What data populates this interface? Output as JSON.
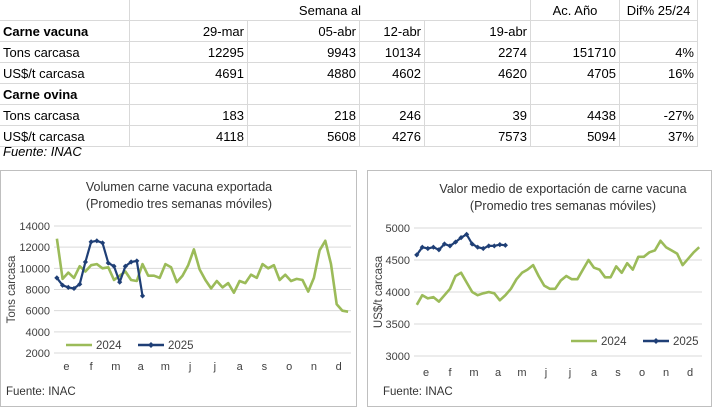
{
  "table": {
    "header": {
      "week_label": "Semana al",
      "ac_label": "Ac. Año",
      "dif_label": "Dif% 25/24"
    },
    "dates": [
      "29-mar",
      "05-abr",
      "12-abr",
      "19-abr"
    ],
    "sections": [
      {
        "title": "Carne vacuna",
        "rows": [
          {
            "label": "Tons carcasa",
            "values": [
              "12295",
              "9943",
              "10134",
              "2274"
            ],
            "ac": "151710",
            "dif": "4%"
          },
          {
            "label": "US$/t carcasa",
            "values": [
              "4691",
              "4880",
              "4602",
              "4620"
            ],
            "ac": "4705",
            "dif": "16%"
          }
        ]
      },
      {
        "title": "Carne ovina",
        "rows": [
          {
            "label": "Tons carcasa",
            "values": [
              "183",
              "218",
              "246",
              "39"
            ],
            "ac": "4438",
            "dif": "-27%"
          },
          {
            "label": "US$/t carcasa",
            "values": [
              "4118",
              "5608",
              "4276",
              "7573"
            ],
            "ac": "5094",
            "dif": "37%"
          }
        ]
      }
    ],
    "source": "Fuente: INAC"
  },
  "chart_data": [
    {
      "type": "line",
      "title": "Volumen carne vacuna exportada",
      "subtitle": "(Promedio tres semanas móviles)",
      "ylabel": "Tons carcasa",
      "ylim": [
        2000,
        14000
      ],
      "yticks": [
        2000,
        4000,
        6000,
        8000,
        10000,
        12000,
        14000
      ],
      "ytick_labels": [
        "2000",
        "4000",
        "6000",
        "8000",
        "10000",
        "12000",
        "14000"
      ],
      "x_labels": [
        "e",
        "f",
        "m",
        "a",
        "m",
        "j",
        "j",
        "a",
        "s",
        "o",
        "n",
        "d"
      ],
      "weeks": 52,
      "series": [
        {
          "name": "2024",
          "color": "#9bbb59",
          "marker": false,
          "values": [
            12800,
            9000,
            9600,
            9100,
            10200,
            9700,
            10300,
            10400,
            10000,
            10100,
            8900,
            9300,
            9700,
            8900,
            8800,
            10400,
            9300,
            9300,
            9100,
            10400,
            10100,
            8700,
            9300,
            10300,
            11800,
            9900,
            8900,
            8100,
            8800,
            8200,
            8600,
            7700,
            8800,
            8600,
            9400,
            9100,
            10400,
            10000,
            10300,
            8900,
            9400,
            8800,
            9000,
            8900,
            7800,
            9100,
            11700,
            12600,
            10400,
            6600,
            6000,
            5900
          ]
        },
        {
          "name": "2025",
          "color": "#1f3f76",
          "marker": true,
          "values": [
            9100,
            8400,
            8200,
            8100,
            8500,
            10600,
            12500,
            12600,
            12400,
            10500,
            10200,
            8700,
            10200,
            10600,
            10700,
            7400
          ]
        }
      ],
      "legend": "bottom-left",
      "source": "Fuente: INAC"
    },
    {
      "type": "line",
      "title": "Valor medio de exportación de carne vacuna",
      "subtitle": "(Promedio tres semanas móviles)",
      "ylabel": "US$/t carcasa",
      "ylim": [
        3000,
        5000
      ],
      "yticks": [
        3000,
        3500,
        4000,
        4500,
        5000
      ],
      "ytick_labels": [
        "3000",
        "3500",
        "4000",
        "4500",
        "5000"
      ],
      "x_labels": [
        "e",
        "f",
        "m",
        "a",
        "m",
        "j",
        "j",
        "a",
        "s",
        "o",
        "n",
        "d"
      ],
      "weeks": 52,
      "series": [
        {
          "name": "2024",
          "color": "#9bbb59",
          "marker": false,
          "values": [
            3800,
            3950,
            3900,
            3920,
            3850,
            3950,
            4050,
            4250,
            4300,
            4150,
            4000,
            3950,
            3980,
            4000,
            3980,
            3870,
            3950,
            4050,
            4200,
            4300,
            4350,
            4420,
            4250,
            4100,
            4050,
            4050,
            4180,
            4250,
            4200,
            4200,
            4350,
            4500,
            4380,
            4350,
            4230,
            4230,
            4400,
            4300,
            4450,
            4350,
            4550,
            4550,
            4620,
            4650,
            4800,
            4700,
            4650,
            4600,
            4420,
            4520,
            4620,
            4700
          ]
        },
        {
          "name": "2025",
          "color": "#1f3f76",
          "marker": true,
          "values": [
            4580,
            4700,
            4680,
            4700,
            4660,
            4750,
            4720,
            4780,
            4850,
            4900,
            4750,
            4700,
            4680,
            4720,
            4720,
            4740,
            4730
          ]
        }
      ],
      "legend": "bottom-center",
      "source": "Fuente: INAC"
    }
  ]
}
